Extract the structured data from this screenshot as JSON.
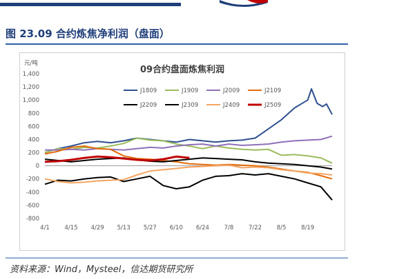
{
  "figure_title": "图 23.09 合约炼焦净利润（盘面）",
  "source_text": "资料来源：Wind，Mysteel，信达期货研究所",
  "colors": {
    "title_blue": "#1f3f7a",
    "rule_blue": "#2e5fa8"
  },
  "chart_data": {
    "type": "line",
    "title": "09合约盘面炼焦利润",
    "unit_label": "元/吨",
    "xlabel": "",
    "ylabel": "",
    "ylim": [
      -800,
      1400
    ],
    "yticks": [
      1400,
      1200,
      1000,
      800,
      600,
      400,
      200,
      0,
      -200,
      -400,
      -600,
      -800
    ],
    "x_ticks": [
      "4/1",
      "4/15",
      "4/29",
      "5/13",
      "5/27",
      "6/10",
      "6/24",
      "7/8",
      "7/22",
      "8/5",
      "8/19"
    ],
    "x_domain": [
      "4/1",
      "9/1"
    ],
    "grid": false,
    "legend_position": "top",
    "series": [
      {
        "name": "J1809",
        "color": "#2e4f8e",
        "width": 2,
        "points": [
          [
            "4/1",
            200
          ],
          [
            "4/8",
            260
          ],
          [
            "4/15",
            300
          ],
          [
            "4/22",
            350
          ],
          [
            "4/29",
            370
          ],
          [
            "5/6",
            350
          ],
          [
            "5/13",
            380
          ],
          [
            "5/20",
            420
          ],
          [
            "5/27",
            400
          ],
          [
            "6/3",
            380
          ],
          [
            "6/10",
            360
          ],
          [
            "6/17",
            400
          ],
          [
            "6/24",
            380
          ],
          [
            "7/1",
            360
          ],
          [
            "7/8",
            380
          ],
          [
            "7/15",
            390
          ],
          [
            "7/22",
            420
          ],
          [
            "7/29",
            560
          ],
          [
            "8/5",
            700
          ],
          [
            "8/12",
            880
          ],
          [
            "8/19",
            1000
          ],
          [
            "8/21",
            1170
          ],
          [
            "8/24",
            950
          ],
          [
            "8/27",
            900
          ],
          [
            "8/29",
            940
          ],
          [
            "9/1",
            780
          ]
        ]
      },
      {
        "name": "J1909",
        "color": "#9bbb59",
        "width": 2,
        "points": [
          [
            "4/1",
            200
          ],
          [
            "4/8",
            260
          ],
          [
            "4/15",
            250
          ],
          [
            "4/22",
            280
          ],
          [
            "4/29",
            270
          ],
          [
            "5/6",
            300
          ],
          [
            "5/13",
            340
          ],
          [
            "5/20",
            420
          ],
          [
            "5/27",
            390
          ],
          [
            "6/3",
            380
          ],
          [
            "6/10",
            330
          ],
          [
            "6/17",
            300
          ],
          [
            "6/24",
            260
          ],
          [
            "7/1",
            300
          ],
          [
            "7/8",
            270
          ],
          [
            "7/15",
            250
          ],
          [
            "7/22",
            240
          ],
          [
            "7/29",
            250
          ],
          [
            "8/5",
            160
          ],
          [
            "8/12",
            170
          ],
          [
            "8/19",
            150
          ],
          [
            "8/26",
            120
          ],
          [
            "9/1",
            40
          ]
        ]
      },
      {
        "name": "J2009",
        "color": "#8e6fb8",
        "width": 2,
        "points": [
          [
            "4/1",
            240
          ],
          [
            "4/8",
            240
          ],
          [
            "4/15",
            250
          ],
          [
            "4/22",
            240
          ],
          [
            "4/29",
            260
          ],
          [
            "5/6",
            250
          ],
          [
            "5/13",
            240
          ],
          [
            "5/20",
            260
          ],
          [
            "5/27",
            280
          ],
          [
            "6/3",
            270
          ],
          [
            "6/10",
            300
          ],
          [
            "6/17",
            320
          ],
          [
            "6/24",
            330
          ],
          [
            "7/1",
            300
          ],
          [
            "7/8",
            330
          ],
          [
            "7/15",
            310
          ],
          [
            "7/22",
            320
          ],
          [
            "7/29",
            330
          ],
          [
            "8/5",
            360
          ],
          [
            "8/12",
            380
          ],
          [
            "8/19",
            390
          ],
          [
            "8/26",
            400
          ],
          [
            "9/1",
            450
          ]
        ]
      },
      {
        "name": "J2109",
        "color": "#e46c0a",
        "width": 2,
        "points": [
          [
            "4/1",
            180
          ],
          [
            "4/8",
            220
          ],
          [
            "4/15",
            280
          ],
          [
            "4/22",
            300
          ],
          [
            "4/29",
            260
          ],
          [
            "5/6",
            250
          ],
          [
            "5/13",
            150
          ],
          [
            "5/20",
            110
          ],
          [
            "5/27",
            100
          ],
          [
            "6/3",
            80
          ],
          [
            "6/10",
            60
          ],
          [
            "6/17",
            30
          ],
          [
            "6/24",
            20
          ],
          [
            "7/1",
            10
          ],
          [
            "7/8",
            20
          ],
          [
            "7/15",
            10
          ],
          [
            "7/22",
            0
          ],
          [
            "7/29",
            -20
          ],
          [
            "8/5",
            -50
          ],
          [
            "8/12",
            -80
          ],
          [
            "8/19",
            -100
          ],
          [
            "8/26",
            -150
          ],
          [
            "9/1",
            -200
          ]
        ]
      },
      {
        "name": "J2209",
        "color": "#000000",
        "width": 2,
        "points": [
          [
            "4/1",
            100
          ],
          [
            "4/8",
            80
          ],
          [
            "4/15",
            60
          ],
          [
            "4/22",
            80
          ],
          [
            "4/29",
            100
          ],
          [
            "5/6",
            110
          ],
          [
            "5/13",
            120
          ],
          [
            "5/20",
            90
          ],
          [
            "5/27",
            70
          ],
          [
            "6/3",
            60
          ],
          [
            "6/10",
            80
          ],
          [
            "6/17",
            100
          ],
          [
            "6/24",
            120
          ],
          [
            "7/1",
            110
          ],
          [
            "7/8",
            100
          ],
          [
            "7/15",
            90
          ],
          [
            "7/22",
            60
          ],
          [
            "7/29",
            40
          ],
          [
            "8/5",
            30
          ],
          [
            "8/12",
            20
          ],
          [
            "8/19",
            0
          ],
          [
            "8/26",
            -20
          ],
          [
            "9/1",
            -50
          ]
        ]
      },
      {
        "name": "J2309",
        "color": "#000000",
        "width": 2,
        "points": [
          [
            "4/1",
            -280
          ],
          [
            "4/8",
            -220
          ],
          [
            "4/15",
            -230
          ],
          [
            "4/22",
            -200
          ],
          [
            "4/29",
            -180
          ],
          [
            "5/6",
            -170
          ],
          [
            "5/13",
            -240
          ],
          [
            "5/20",
            -200
          ],
          [
            "5/27",
            -160
          ],
          [
            "6/3",
            -300
          ],
          [
            "6/10",
            -350
          ],
          [
            "6/17",
            -320
          ],
          [
            "6/24",
            -220
          ],
          [
            "7/1",
            -160
          ],
          [
            "7/8",
            -150
          ],
          [
            "7/15",
            -120
          ],
          [
            "7/22",
            -140
          ],
          [
            "7/29",
            -120
          ],
          [
            "8/5",
            -160
          ],
          [
            "8/12",
            -200
          ],
          [
            "8/19",
            -260
          ],
          [
            "8/26",
            -320
          ],
          [
            "9/1",
            -520
          ]
        ]
      },
      {
        "name": "J2409",
        "color": "#f4a460",
        "width": 2,
        "points": [
          [
            "4/1",
            -200
          ],
          [
            "4/8",
            -240
          ],
          [
            "4/15",
            -260
          ],
          [
            "4/22",
            -250
          ],
          [
            "4/29",
            -230
          ],
          [
            "5/6",
            -220
          ],
          [
            "5/13",
            -210
          ],
          [
            "5/20",
            -140
          ],
          [
            "5/27",
            -80
          ],
          [
            "6/3",
            -60
          ],
          [
            "6/10",
            -40
          ],
          [
            "6/17",
            -20
          ],
          [
            "6/24",
            -10
          ],
          [
            "7/1",
            0
          ],
          [
            "7/8",
            10
          ],
          [
            "7/15",
            -30
          ],
          [
            "7/22",
            -20
          ],
          [
            "7/29",
            -30
          ],
          [
            "8/5",
            -60
          ],
          [
            "8/12",
            -80
          ],
          [
            "8/19",
            -110
          ],
          [
            "8/26",
            -120
          ],
          [
            "9/1",
            -140
          ]
        ]
      },
      {
        "name": "J2509",
        "color": "#c00000",
        "width": 3,
        "points": [
          [
            "4/1",
            60
          ],
          [
            "4/8",
            70
          ],
          [
            "4/15",
            90
          ],
          [
            "4/22",
            120
          ],
          [
            "4/29",
            140
          ],
          [
            "5/6",
            130
          ],
          [
            "5/13",
            110
          ],
          [
            "5/20",
            90
          ],
          [
            "5/27",
            80
          ],
          [
            "6/3",
            100
          ],
          [
            "6/10",
            140
          ],
          [
            "6/17",
            120
          ]
        ]
      }
    ]
  }
}
